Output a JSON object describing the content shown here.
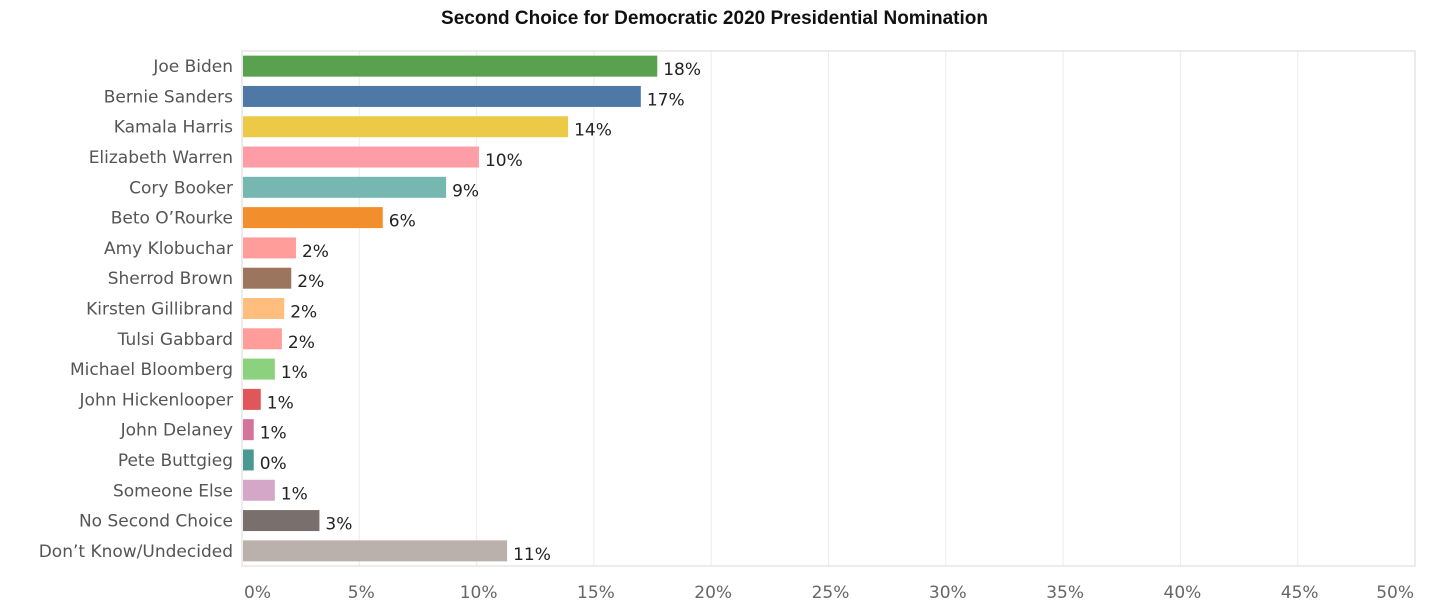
{
  "chart_data": {
    "type": "bar",
    "orientation": "horizontal",
    "title": "Second Choice for Democratic 2020 Presidential Nomination",
    "xlabel": "",
    "ylabel": "",
    "xlim": [
      0,
      50
    ],
    "x_ticks": [
      "0%",
      "5%",
      "10%",
      "15%",
      "20%",
      "25%",
      "30%",
      "35%",
      "40%",
      "45%",
      "50%"
    ],
    "x_tick_values": [
      0,
      5,
      10,
      15,
      20,
      25,
      30,
      35,
      40,
      45,
      50
    ],
    "grid": true,
    "categories": [
      "Joe Biden",
      "Bernie Sanders",
      "Kamala Harris",
      "Elizabeth Warren",
      "Cory Booker",
      "Beto O’Rourke",
      "Amy Klobuchar",
      "Sherrod Brown",
      "Kirsten Gillibrand",
      "Tulsi Gabbard",
      "Michael Bloomberg",
      "John Hickenlooper",
      "John Delaney",
      "Pete Buttgieg",
      "Someone Else",
      "No Second Choice",
      "Don’t Know/Undecided"
    ],
    "values": [
      17.7,
      17.0,
      13.9,
      10.1,
      8.7,
      6.0,
      2.3,
      2.1,
      1.8,
      1.7,
      1.4,
      0.8,
      0.5,
      0.5,
      1.4,
      3.3,
      11.3
    ],
    "data_labels": [
      "18%",
      "17%",
      "14%",
      "10%",
      "9%",
      "6%",
      "2%",
      "2%",
      "2%",
      "2%",
      "1%",
      "1%",
      "1%",
      "0%",
      "1%",
      "3%",
      "11%"
    ],
    "colors": [
      "#59a14f",
      "#4e79a7",
      "#edc948",
      "#ff9da7",
      "#76b7b2",
      "#f28e2b",
      "#ff9d9a",
      "#9c755f",
      "#ffbe7d",
      "#ff9d9a",
      "#8cd17d",
      "#e15759",
      "#d4739b",
      "#499894",
      "#d4a6c8",
      "#79706e",
      "#bab0ac"
    ]
  }
}
